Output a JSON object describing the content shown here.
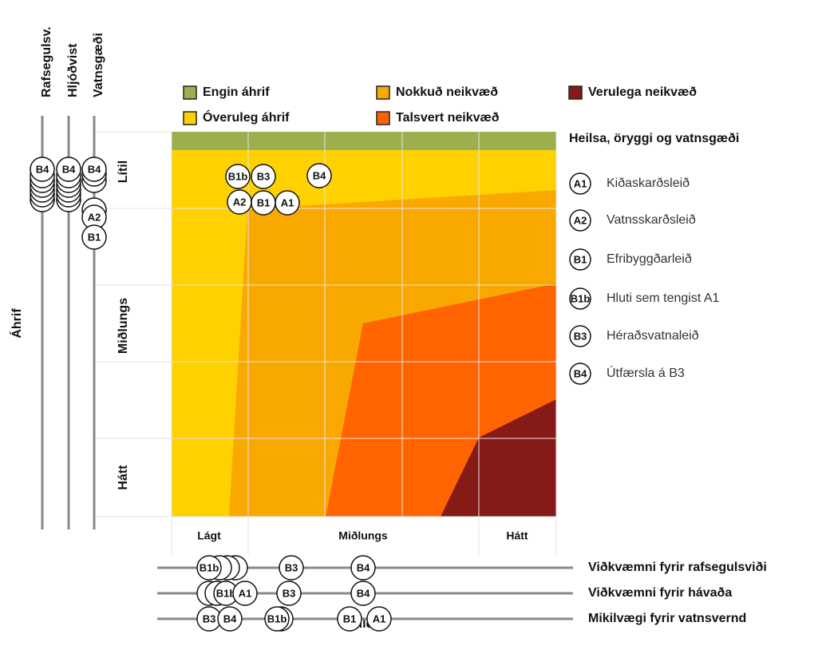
{
  "impact_legend": [
    {
      "label": "Engin áhrif",
      "color": "#9bb04c"
    },
    {
      "label": "Nokkuð neikvæð",
      "color": "#f9a800"
    },
    {
      "label": "Verulega neikvæð",
      "color": "#861a17"
    },
    {
      "label": "Óveruleg áhrif",
      "color": "#ffd100"
    },
    {
      "label": "Talsvert neikvæð",
      "color": "#ff6400"
    }
  ],
  "heading": "Heilsa, öryggi og vatnsgæði",
  "routes": [
    {
      "code": "A1",
      "name": "Kiðaskarðsleið"
    },
    {
      "code": "A2",
      "name": "Vatnsskarðsleið"
    },
    {
      "code": "B1",
      "name": "Efribyggðarleið"
    },
    {
      "code": "B1b",
      "name": "Hluti sem tengist A1"
    },
    {
      "code": "B3",
      "name": "Héraðsvatnaleið"
    },
    {
      "code": "B4",
      "name": "Útfærsla á B3"
    }
  ],
  "y_axis": {
    "label": "Áhrif",
    "levels": [
      "Lítil",
      "Miðlungs",
      "Hátt"
    ]
  },
  "x_axis": {
    "label": "Gildi",
    "levels": [
      "Lágt",
      "Miðlungs",
      "Hátt"
    ]
  },
  "matrix_markers": [
    "B1b",
    "B3",
    "B4",
    "A2",
    "B1",
    "A1"
  ],
  "left_axes": [
    {
      "label": "Rafsegulsv.",
      "markers": [
        "B4"
      ]
    },
    {
      "label": "Hljóðvist",
      "markers": [
        "B4"
      ]
    },
    {
      "label": "Vatnsgæði",
      "markers": [
        "B4",
        "A2",
        "B1"
      ]
    }
  ],
  "bottom_axes": [
    {
      "label": "Viðkvæmni fyrir rafsegulsviði",
      "markers": [
        "B1b",
        "B3",
        "B4"
      ]
    },
    {
      "label": "Viðkvæmni fyrir hávaða",
      "markers": [
        "B1b",
        "A1",
        "B3",
        "B4"
      ]
    },
    {
      "label": "Mikilvægi fyrir vatnsvernd",
      "markers": [
        "B3",
        "B4",
        "B1b",
        "B1",
        "A1"
      ]
    }
  ]
}
